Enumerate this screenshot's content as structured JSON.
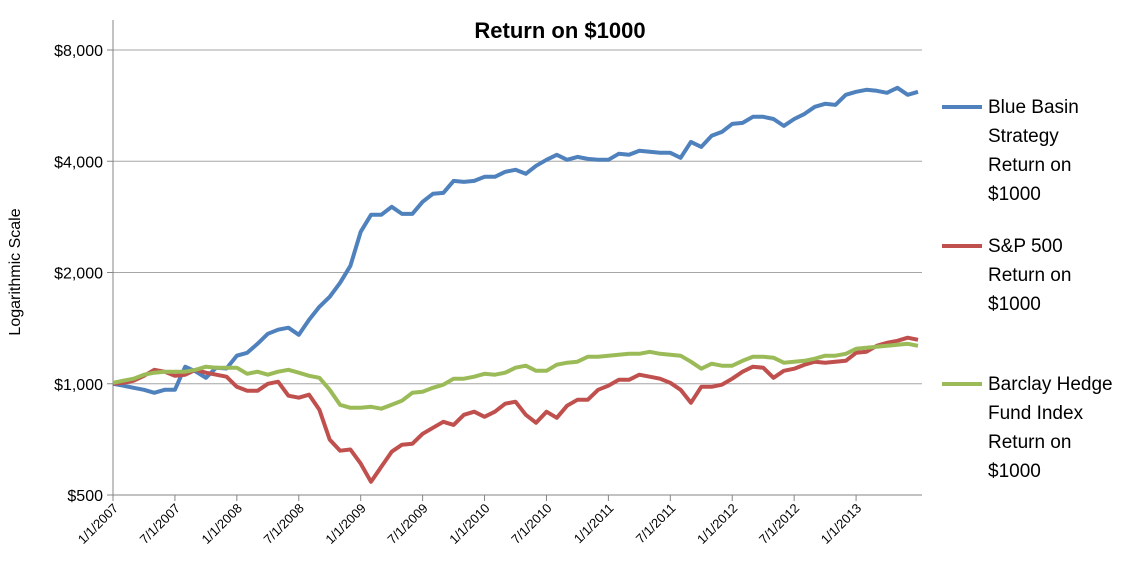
{
  "chart_data": {
    "type": "line",
    "title": "Return on $1000",
    "ylabel": "Logarithmic Scale",
    "categories": [
      "1/1/2007",
      null,
      null,
      null,
      null,
      null,
      "7/1/2007",
      null,
      null,
      null,
      null,
      null,
      "1/1/2008",
      null,
      null,
      null,
      null,
      null,
      "7/1/2008",
      null,
      null,
      null,
      null,
      null,
      "1/1/2009",
      null,
      null,
      null,
      null,
      null,
      "7/1/2009",
      null,
      null,
      null,
      null,
      null,
      "1/1/2010",
      null,
      null,
      null,
      null,
      null,
      "7/1/2010",
      null,
      null,
      null,
      null,
      null,
      "1/1/2011",
      null,
      null,
      null,
      null,
      null,
      "7/1/2011",
      null,
      null,
      null,
      null,
      null,
      "1/1/2012",
      null,
      null,
      null,
      null,
      null,
      "7/1/2012",
      null,
      null,
      null,
      null,
      null,
      "1/1/2013",
      null,
      null,
      null,
      null,
      null,
      null
    ],
    "series": [
      {
        "name": "Blue Basin Strategy Return on $1000",
        "color": "#4f81bd",
        "values": [
          1000,
          988,
          975,
          963,
          945,
          963,
          963,
          1112,
          1080,
          1038,
          1105,
          1100,
          1191,
          1213,
          1283,
          1365,
          1400,
          1418,
          1357,
          1490,
          1615,
          1719,
          1876,
          2085,
          2577,
          2865,
          2865,
          3011,
          2882,
          2882,
          3106,
          3265,
          3285,
          3540,
          3518,
          3540,
          3630,
          3630,
          3745,
          3792,
          3700,
          3888,
          4036,
          4164,
          4036,
          4110,
          4060,
          4036,
          4036,
          4190,
          4164,
          4269,
          4243,
          4217,
          4217,
          4086,
          4513,
          4374,
          4686,
          4804,
          5049,
          5080,
          5275,
          5275,
          5205,
          4986,
          5205,
          5374,
          5614,
          5720,
          5684,
          6050,
          6164,
          6242,
          6203,
          6126,
          6320,
          6050,
          6164
        ]
      },
      {
        "name": "S&P 500 Return on $1000",
        "color": "#c0504d",
        "values": [
          1000,
          1006,
          1019,
          1051,
          1091,
          1078,
          1051,
          1058,
          1091,
          1071,
          1058,
          1045,
          981,
          957,
          957,
          1000,
          1013,
          928,
          917,
          934,
          850,
          706,
          659,
          664,
          608,
          543,
          596,
          655,
          684,
          688,
          732,
          760,
          789,
          774,
          824,
          840,
          814,
          840,
          883,
          894,
          824,
          784,
          840,
          809,
          872,
          905,
          905,
          963,
          988,
          1025,
          1025,
          1058,
          1045,
          1032,
          1006,
          963,
          888,
          981,
          981,
          994,
          1032,
          1078,
          1112,
          1105,
          1038,
          1084,
          1098,
          1126,
          1147,
          1140,
          1147,
          1154,
          1213,
          1220,
          1267,
          1291,
          1307,
          1332,
          1315
        ]
      },
      {
        "name": "Barclay Hedge Fund Index Return on $1000",
        "color": "#9bbb59",
        "values": [
          1006,
          1019,
          1032,
          1058,
          1071,
          1078,
          1078,
          1078,
          1091,
          1112,
          1105,
          1105,
          1105,
          1064,
          1078,
          1058,
          1078,
          1091,
          1071,
          1051,
          1038,
          963,
          877,
          861,
          861,
          866,
          856,
          877,
          900,
          945,
          951,
          975,
          994,
          1032,
          1032,
          1045,
          1064,
          1058,
          1071,
          1105,
          1119,
          1084,
          1084,
          1126,
          1140,
          1147,
          1183,
          1183,
          1191,
          1198,
          1205,
          1205,
          1220,
          1205,
          1198,
          1191,
          1147,
          1098,
          1133,
          1119,
          1119,
          1154,
          1183,
          1183,
          1176,
          1140,
          1147,
          1154,
          1169,
          1191,
          1191,
          1205,
          1243,
          1251,
          1259,
          1267,
          1275,
          1283,
          1267
        ]
      }
    ],
    "ylim": [
      500,
      8000
    ],
    "log_y": true,
    "yticks": [
      {
        "value": 500,
        "label": "$500"
      },
      {
        "value": 1000,
        "label": "$1,000"
      },
      {
        "value": 2000,
        "label": "$2,000"
      },
      {
        "value": 4000,
        "label": "$4,000"
      },
      {
        "value": 8000,
        "label": "$8,000"
      }
    ],
    "grid": true,
    "legend": "right"
  }
}
